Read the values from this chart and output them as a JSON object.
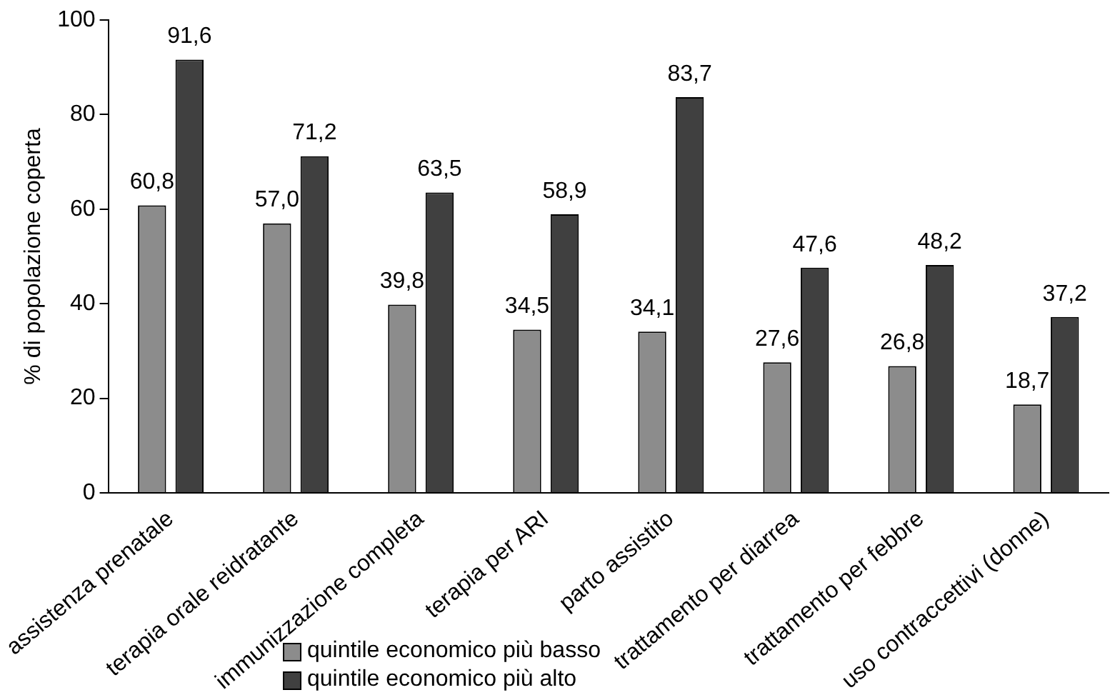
{
  "chart_data": {
    "type": "bar",
    "ylabel": "% di popolazione coperta",
    "categories": [
      "assistenza prenatale",
      "terapia orale reidratante",
      "immunizzazione completa",
      "terapia per ARI",
      "parto assistito",
      "trattamento per diarrea",
      "trattamento per febbre",
      "uso contraccettivi (donne)"
    ],
    "series": [
      {
        "name": "quintile economico più basso",
        "color": "#8c8c8c",
        "values": [
          60.8,
          57.0,
          39.8,
          34.5,
          34.1,
          27.6,
          26.8,
          18.7
        ],
        "value_labels": [
          "60,8",
          "57,0",
          "39,8",
          "34,5",
          "34,1",
          "27,6",
          "26,8",
          "18,7"
        ]
      },
      {
        "name": "quintile economico più alto",
        "color": "#404040",
        "values": [
          91.6,
          71.2,
          63.5,
          58.9,
          83.7,
          47.6,
          48.2,
          37.2
        ],
        "value_labels": [
          "91,6",
          "71,2",
          "63,5",
          "58,9",
          "83,7",
          "47,6",
          "48,2",
          "37,2"
        ]
      }
    ],
    "ylim": [
      0,
      100
    ],
    "yticks": [
      0,
      20,
      40,
      60,
      80,
      100
    ],
    "grid": false,
    "legend": "bottom"
  }
}
